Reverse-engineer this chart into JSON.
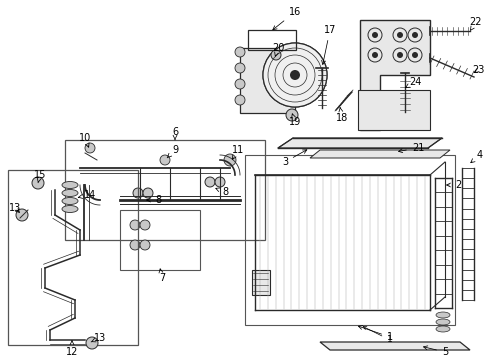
{
  "bg_color": "#ffffff",
  "fig_width": 4.89,
  "fig_height": 3.6,
  "dpi": 100,
  "line_color": "#2a2a2a",
  "box_color": "#555555",
  "fill_light": "#e8e8e8",
  "fill_mid": "#c8c8c8"
}
